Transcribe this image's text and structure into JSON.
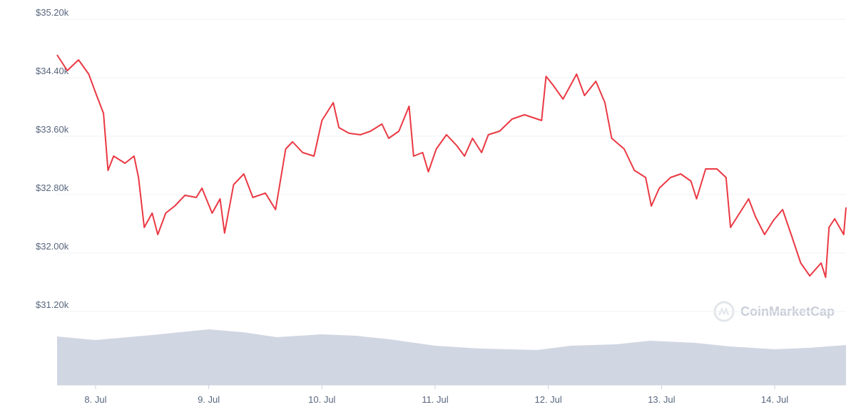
{
  "chart_data": [
    {
      "type": "line",
      "watermark": "CoinMarketCap",
      "x": [
        7.66,
        7.75,
        7.85,
        7.94,
        8.01,
        8.07,
        8.11,
        8.16,
        8.26,
        8.34,
        8.38,
        8.43,
        8.5,
        8.55,
        8.62,
        8.7,
        8.79,
        8.89,
        8.94,
        9.03,
        9.1,
        9.14,
        9.22,
        9.31,
        9.39,
        9.5,
        9.59,
        9.68,
        9.74,
        9.83,
        9.93,
        10.0,
        10.1,
        10.15,
        10.24,
        10.34,
        10.43,
        10.53,
        10.59,
        10.68,
        10.77,
        10.81,
        10.89,
        10.94,
        11.01,
        11.1,
        11.19,
        11.26,
        11.33,
        11.41,
        11.47,
        11.57,
        11.68,
        11.79,
        11.94,
        11.98,
        12.04,
        12.13,
        12.25,
        12.32,
        12.42,
        12.5,
        12.56,
        12.67,
        12.76,
        12.86,
        12.91,
        12.98,
        13.08,
        13.17,
        13.26,
        13.31,
        13.39,
        13.49,
        13.57,
        13.61,
        13.71,
        13.77,
        13.83,
        13.91,
        13.99,
        14.07,
        14.15,
        14.23,
        14.31,
        14.41,
        14.45,
        14.48,
        14.53,
        14.61,
        14.63
      ],
      "series": [
        {
          "color": "#ea3943",
          "values": [
            34712,
            34498,
            34644,
            34449,
            34156,
            33912,
            33132,
            33327,
            33229,
            33327,
            33034,
            32351,
            32546,
            32254,
            32546,
            32644,
            32790,
            32761,
            32888,
            32546,
            32741,
            32273,
            32937,
            33083,
            32761,
            32820,
            32595,
            33424,
            33522,
            33376,
            33327,
            33815,
            34059,
            33717,
            33639,
            33620,
            33668,
            33766,
            33571,
            33668,
            34010,
            33327,
            33376,
            33112,
            33424,
            33620,
            33473,
            33327,
            33571,
            33376,
            33620,
            33668,
            33834,
            33893,
            33815,
            34419,
            34302,
            34107,
            34449,
            34156,
            34351,
            34059,
            33571,
            33424,
            33132,
            33034,
            32644,
            32888,
            33034,
            33083,
            32985,
            32741,
            33151,
            33151,
            33034,
            32351,
            32595,
            32741,
            32498,
            32254,
            32449,
            32595,
            32234,
            31863,
            31688,
            31863,
            31668,
            32351,
            32468,
            32254,
            32624
          ]
        }
      ],
      "xlim": [
        7.66,
        14.63
      ],
      "xticks": [
        {
          "value": 8,
          "label": "8. Jul"
        },
        {
          "value": 9,
          "label": "9. Jul"
        },
        {
          "value": 10,
          "label": "10. Jul"
        },
        {
          "value": 11,
          "label": "11. Jul"
        },
        {
          "value": 12,
          "label": "12. Jul"
        },
        {
          "value": 13,
          "label": "13. Jul"
        },
        {
          "value": 14,
          "label": "14. Jul"
        }
      ],
      "ylim": [
        31200,
        35200
      ],
      "yticks": [
        {
          "value": 31200,
          "label": "$31.20k"
        },
        {
          "value": 32000,
          "label": "$32.00k"
        },
        {
          "value": 32800,
          "label": "$32.80k"
        },
        {
          "value": 33600,
          "label": "$33.60k"
        },
        {
          "value": 34400,
          "label": "$34.40k"
        },
        {
          "value": 35200,
          "label": "$35.20k"
        }
      ],
      "grid": true
    },
    {
      "type": "area",
      "color": "#d1d6e3",
      "x": [
        7.66,
        8.0,
        8.5,
        9.0,
        9.3,
        9.6,
        10.0,
        10.3,
        10.6,
        11.0,
        11.4,
        11.9,
        12.2,
        12.6,
        12.9,
        13.3,
        13.6,
        14.0,
        14.3,
        14.63
      ],
      "values": [
        68,
        63,
        70,
        78,
        74,
        67,
        71,
        69,
        64,
        55,
        51,
        49,
        55,
        57,
        62,
        59,
        54,
        50,
        52,
        56
      ],
      "xlim": [
        7.66,
        14.63
      ],
      "ylim": [
        0,
        100
      ]
    }
  ]
}
